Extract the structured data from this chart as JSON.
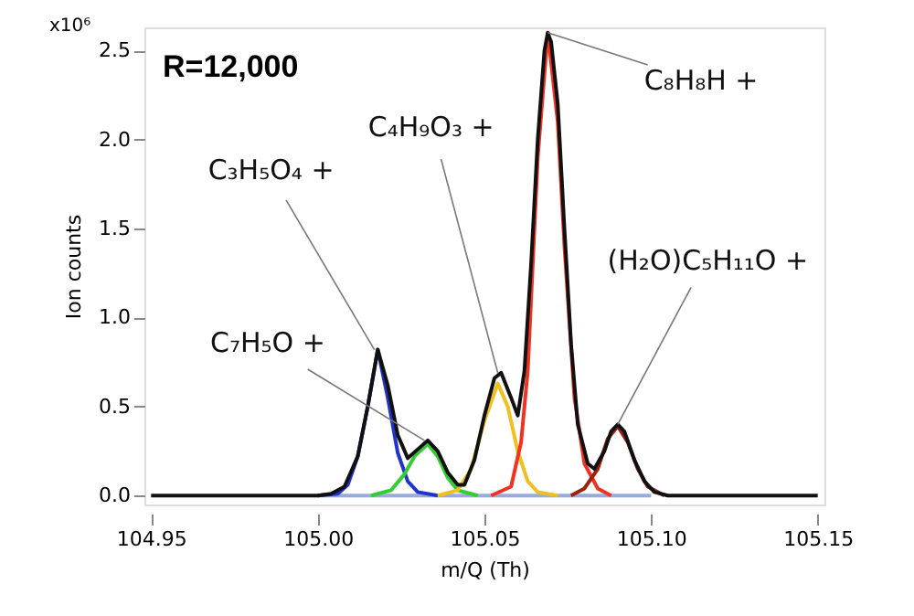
{
  "chart_data": {
    "type": "line",
    "xlabel": "m/Q (Th)",
    "ylabel": "Ion counts",
    "xlim": [
      104.948,
      105.152
    ],
    "xticks": [
      104.95,
      {
        "value": 105.0,
        "label": "105.00"
      },
      105.05,
      {
        "value": 105.1,
        "label": "105.10"
      },
      105.15
    ],
    "ylim": [
      -0.05,
      2.63
    ],
    "yticks": [
      {
        "value": 0,
        "label": "0.0"
      },
      0.5,
      {
        "value": 1,
        "label": "1.0"
      },
      1.5,
      {
        "value": 2,
        "label": "2.0"
      },
      2.5
    ],
    "grid": false,
    "marker": "none",
    "line_style": "solid",
    "series": [
      {
        "color": "#99aadd",
        "x": [
          105.0,
          105.1
        ],
        "values": [
          0,
          0
        ]
      },
      {
        "color": "#2233cc",
        "x": [
          105.0,
          105.006,
          105.009,
          105.012,
          105.015,
          105.018,
          105.021,
          105.024,
          105.027,
          105.03,
          105.036
        ],
        "values": [
          0,
          0.01,
          0.06,
          0.22,
          0.5,
          0.82,
          0.55,
          0.24,
          0.08,
          0.02,
          0
        ]
      },
      {
        "color": "#33cc33",
        "x": [
          105.016,
          105.022,
          105.026,
          105.029,
          105.033,
          105.036,
          105.039,
          105.042,
          105.048
        ],
        "values": [
          0,
          0.03,
          0.12,
          0.22,
          0.29,
          0.22,
          0.1,
          0.03,
          0
        ]
      },
      {
        "color": "#f0c020",
        "x": [
          105.036,
          105.042,
          105.046,
          105.05,
          105.054,
          105.057,
          105.06,
          105.063,
          105.066,
          105.072
        ],
        "values": [
          0,
          0.03,
          0.15,
          0.42,
          0.63,
          0.5,
          0.25,
          0.08,
          0.02,
          0
        ]
      },
      {
        "color": "#ee3322",
        "x": [
          105.052,
          105.058,
          105.061,
          105.063,
          105.066,
          105.069,
          105.072,
          105.074,
          105.077,
          105.08,
          105.084,
          105.088
        ],
        "values": [
          0,
          0.05,
          0.3,
          0.7,
          1.9,
          2.6,
          2.1,
          1.4,
          0.55,
          0.18,
          0.04,
          0
        ]
      },
      {
        "color": "#a02010",
        "x": [
          105.076,
          105.08,
          105.084,
          105.087,
          105.09,
          105.093,
          105.096,
          105.099,
          105.104
        ],
        "values": [
          0,
          0.04,
          0.15,
          0.32,
          0.39,
          0.3,
          0.15,
          0.05,
          0
        ]
      },
      {
        "color": "#111111",
        "x": [
          104.95,
          105.0,
          105.004,
          105.008,
          105.012,
          105.015,
          105.018,
          105.021,
          105.024,
          105.027,
          105.03,
          105.033,
          105.036,
          105.039,
          105.042,
          105.044,
          105.047,
          105.05,
          105.053,
          105.055,
          105.058,
          105.06,
          105.062,
          105.064,
          105.066,
          105.068,
          105.069,
          105.07,
          105.072,
          105.074,
          105.076,
          105.078,
          105.081,
          105.083,
          105.086,
          105.088,
          105.09,
          105.092,
          105.095,
          105.098,
          105.101,
          105.105,
          105.15
        ],
        "values": [
          0,
          0,
          0.01,
          0.05,
          0.22,
          0.5,
          0.82,
          0.62,
          0.34,
          0.21,
          0.26,
          0.31,
          0.25,
          0.13,
          0.06,
          0.06,
          0.2,
          0.45,
          0.66,
          0.69,
          0.55,
          0.45,
          0.7,
          1.3,
          2.0,
          2.5,
          2.6,
          2.55,
          2.2,
          1.5,
          0.85,
          0.4,
          0.18,
          0.15,
          0.25,
          0.36,
          0.4,
          0.36,
          0.2,
          0.08,
          0.02,
          0,
          0
        ]
      }
    ],
    "annotations": [
      "R=12,000",
      "x10⁶",
      {
        "text": "C₃H₅O₄ +",
        "x": 105.017,
        "y": 0.82
      },
      {
        "text": "C₇H₅O +",
        "x": 105.032,
        "y": 0.31
      },
      {
        "text": "C₄H₉O₃ +",
        "x": 105.054,
        "y": 0.69
      },
      {
        "text": "C₈H₈H +",
        "x": 105.069,
        "y": 2.6
      },
      {
        "text": "(H₂O)C₅H₁₁O +",
        "x": 105.09,
        "y": 0.4
      }
    ]
  }
}
